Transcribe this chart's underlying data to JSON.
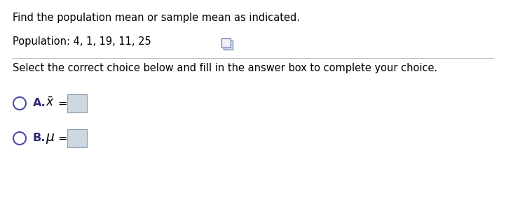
{
  "line1": "Find the population mean or sample mean as indicated.",
  "line2": "Population: 4, 1, 19, 11, 25",
  "line3": "Select the correct choice below and fill in the answer box to complete your choice.",
  "bg_color": "#ffffff",
  "text_color": "#000000",
  "label_color": "#2a2a6e",
  "circle_color": "#4a4aaa",
  "box_fill_color": "#cdd8e3",
  "box_edge_color": "#8899aa",
  "separator_color": "#bbbbbb",
  "font_size_main": 10.5,
  "font_size_options": 11.5
}
